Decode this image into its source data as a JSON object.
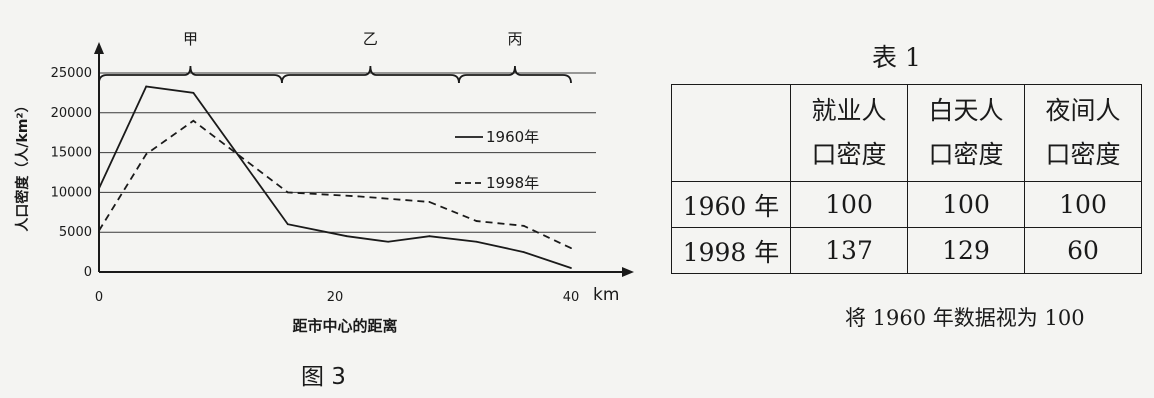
{
  "chart_data": {
    "type": "line",
    "ylabel": "人口密度（人/km²）",
    "xlabel": "距市中心的距离",
    "x_unit": "km",
    "xlim": [
      0,
      45
    ],
    "ylim": [
      0,
      27500
    ],
    "x_ticks": [
      0,
      20,
      40
    ],
    "y_ticks": [
      0,
      5000,
      10000,
      15000,
      20000,
      25000
    ],
    "grid": "horizontal",
    "legend_position": "right",
    "zones": [
      {
        "label": "甲",
        "from": 0,
        "to": 15.5
      },
      {
        "label": "乙",
        "from": 15.5,
        "to": 30.5
      },
      {
        "label": "丙",
        "from": 30.5,
        "to": 40
      }
    ],
    "series": [
      {
        "name": "1960年",
        "style": "solid",
        "points": [
          [
            0,
            10500
          ],
          [
            4,
            23300
          ],
          [
            8,
            22500
          ],
          [
            16,
            6000
          ],
          [
            21,
            4500
          ],
          [
            24.5,
            3800
          ],
          [
            28,
            4500
          ],
          [
            32,
            3800
          ],
          [
            36,
            2500
          ],
          [
            40,
            500
          ]
        ]
      },
      {
        "name": "1998年",
        "style": "dashed",
        "points": [
          [
            0,
            5200
          ],
          [
            4,
            14800
          ],
          [
            8,
            19000
          ],
          [
            16,
            10000
          ],
          [
            22,
            9500
          ],
          [
            28,
            8800
          ],
          [
            32,
            6400
          ],
          [
            36,
            5800
          ],
          [
            40,
            3000
          ]
        ]
      }
    ]
  },
  "figure_caption": "图 3",
  "table": {
    "title": "表 1",
    "columns": [
      "就业人\n口密度",
      "白天人\n口密度",
      "夜间人\n口密度"
    ],
    "rows": [
      {
        "label": "1960 年",
        "values": [
          "100",
          "100",
          "100"
        ]
      },
      {
        "label": "1998 年",
        "values": [
          "137",
          "129",
          "60"
        ]
      }
    ],
    "note": "将 1960 年数据视为 100"
  }
}
